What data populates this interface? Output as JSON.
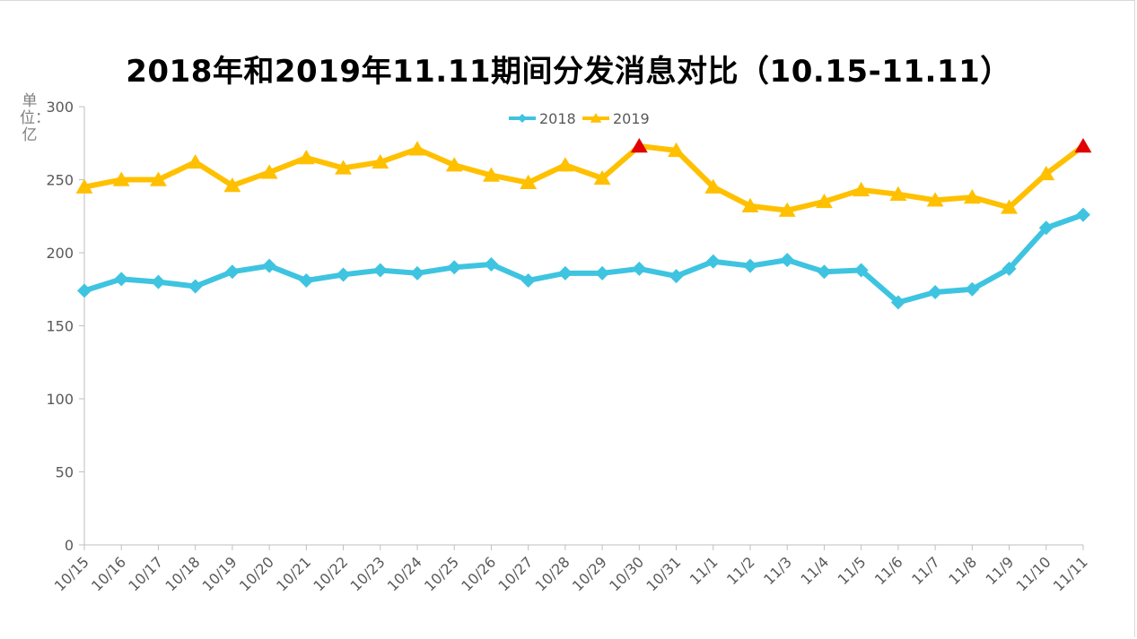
{
  "chart_data": {
    "type": "line",
    "title": "2018年和2019年11.11期间分发消息对比（10.15-11.11）",
    "ylabel": "单位：亿",
    "ylim": [
      0,
      300
    ],
    "yticks": [
      "0",
      "50",
      "100",
      "150",
      "200",
      "250",
      "300"
    ],
    "categories": [
      "10/15",
      "10/16",
      "10/17",
      "10/18",
      "10/19",
      "10/20",
      "10/21",
      "10/22",
      "10/23",
      "10/24",
      "10/25",
      "10/26",
      "10/27",
      "10/28",
      "10/29",
      "10/30",
      "10/31",
      "11/1",
      "11/2",
      "11/3",
      "11/4",
      "11/5",
      "11/6",
      "11/7",
      "11/8",
      "11/9",
      "11/10",
      "11/11"
    ],
    "series": [
      {
        "name": "2018",
        "color": "#3ec4e0",
        "marker": "diamond",
        "values": [
          174,
          182,
          180,
          177,
          187,
          191,
          181,
          185,
          188,
          186,
          190,
          192,
          181,
          186,
          186,
          189,
          184,
          194,
          191,
          195,
          187,
          188,
          166,
          173,
          175,
          189,
          217,
          226
        ]
      },
      {
        "name": "2019",
        "color": "#ffc000",
        "marker": "triangle",
        "highlight_color": "#e00000",
        "highlight_indices": [
          15,
          27
        ],
        "values": [
          245,
          250,
          250,
          262,
          246,
          255,
          265,
          258,
          262,
          271,
          260,
          253,
          248,
          260,
          251,
          273,
          270,
          245,
          232,
          229,
          235,
          243,
          240,
          236,
          238,
          231,
          254,
          273
        ]
      }
    ],
    "legend_position": "top-center",
    "grid": false
  }
}
